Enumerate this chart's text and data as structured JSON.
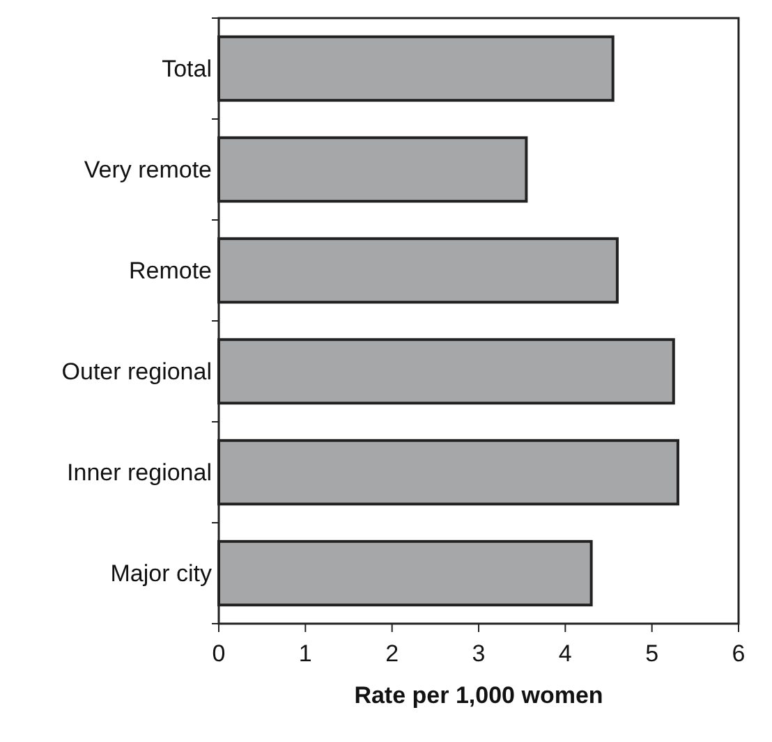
{
  "chart_data": {
    "type": "bar",
    "orientation": "horizontal",
    "xlabel": "Rate per 1,000 women",
    "categories": [
      "Total",
      "Very remote",
      "Remote",
      "Outer regional",
      "Inner regional",
      "Major city"
    ],
    "values": [
      4.55,
      3.55,
      4.6,
      5.25,
      5.3,
      4.3
    ],
    "color": "#a6a7a9",
    "xlim": [
      0,
      6
    ],
    "xticks": [
      0,
      1,
      2,
      3,
      4,
      5,
      6
    ],
    "grid": false
  }
}
